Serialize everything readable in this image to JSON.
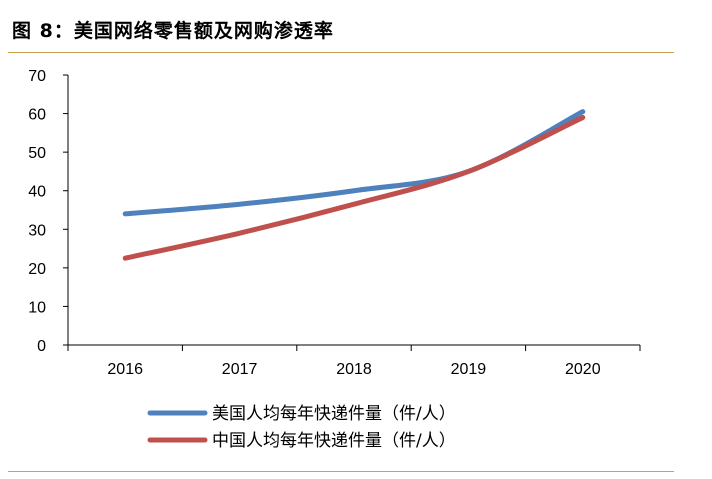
{
  "title": "图 8：美国网络零售额及网购渗透率",
  "chart_data": {
    "type": "line",
    "title": "",
    "xlabel": "",
    "ylabel": "",
    "categories": [
      "2016",
      "2017",
      "2018",
      "2019",
      "2020"
    ],
    "yticks": [
      "0",
      "10",
      "20",
      "30",
      "40",
      "50",
      "60",
      "70"
    ],
    "ylim": [
      0,
      70
    ],
    "grid": false,
    "legend_position": "bottom",
    "series": [
      {
        "name": "美国人均每年快递件量（件/人）",
        "color": "#4f81bd",
        "values": [
          34,
          36.5,
          40,
          45,
          60.5
        ]
      },
      {
        "name": "中国人均每年快递件量（件/人）",
        "color": "#c0504d",
        "values": [
          22.5,
          29,
          36.5,
          45,
          59
        ]
      }
    ]
  }
}
